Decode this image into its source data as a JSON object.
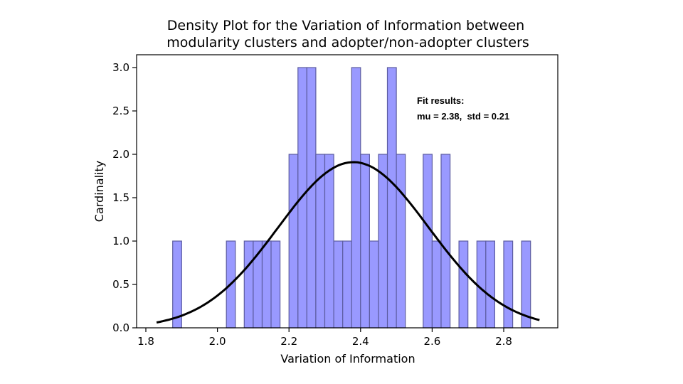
{
  "chart_data": {
    "type": "bar",
    "title_lines": [
      "Density Plot for the Variation of Information between",
      " modularity clusters and adopter/non-adopter clusters"
    ],
    "xlabel": "Variation of Information",
    "ylabel": "Cardinality",
    "xlim": [
      1.8,
      2.95
    ],
    "ylim": [
      0.0,
      3.0
    ],
    "xticks": [
      "1.8",
      "2.0",
      "2.2",
      "2.4",
      "2.6",
      "2.8"
    ],
    "yticks": [
      "0.0",
      "0.5",
      "1.0",
      "1.5",
      "2.0",
      "2.5",
      "3.0"
    ],
    "bin_width": 0.025,
    "bins": [
      {
        "x": 1.875,
        "value": 1
      },
      {
        "x": 2.025,
        "value": 1
      },
      {
        "x": 2.075,
        "value": 1
      },
      {
        "x": 2.1,
        "value": 1
      },
      {
        "x": 2.125,
        "value": 1
      },
      {
        "x": 2.15,
        "value": 1
      },
      {
        "x": 2.2,
        "value": 2
      },
      {
        "x": 2.225,
        "value": 3
      },
      {
        "x": 2.25,
        "value": 3
      },
      {
        "x": 2.275,
        "value": 2
      },
      {
        "x": 2.3,
        "value": 2
      },
      {
        "x": 2.325,
        "value": 1
      },
      {
        "x": 2.35,
        "value": 1
      },
      {
        "x": 2.375,
        "value": 3
      },
      {
        "x": 2.4,
        "value": 2
      },
      {
        "x": 2.425,
        "value": 1
      },
      {
        "x": 2.45,
        "value": 2
      },
      {
        "x": 2.475,
        "value": 3
      },
      {
        "x": 2.5,
        "value": 2
      },
      {
        "x": 2.575,
        "value": 2
      },
      {
        "x": 2.6,
        "value": 1
      },
      {
        "x": 2.625,
        "value": 2
      },
      {
        "x": 2.675,
        "value": 1
      },
      {
        "x": 2.725,
        "value": 1
      },
      {
        "x": 2.75,
        "value": 1
      },
      {
        "x": 2.8,
        "value": 1
      },
      {
        "x": 2.85,
        "value": 1
      }
    ],
    "fit": {
      "mu": 2.38,
      "std": 0.21,
      "peak": 1.91,
      "x_range": [
        1.83,
        2.9
      ]
    },
    "annotation_lines": [
      "Fit results:",
      "mu = 2.38,  std = 0.21"
    ],
    "grid": false,
    "colors": {
      "bar_fill": "#9999ff",
      "bar_edge": "#5c5ca0",
      "fit_line": "#000000"
    }
  }
}
